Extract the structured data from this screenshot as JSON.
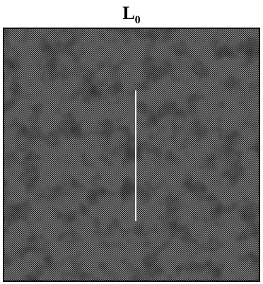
{
  "figure": {
    "title": {
      "main": "L",
      "subscript": "0"
    }
  }
}
